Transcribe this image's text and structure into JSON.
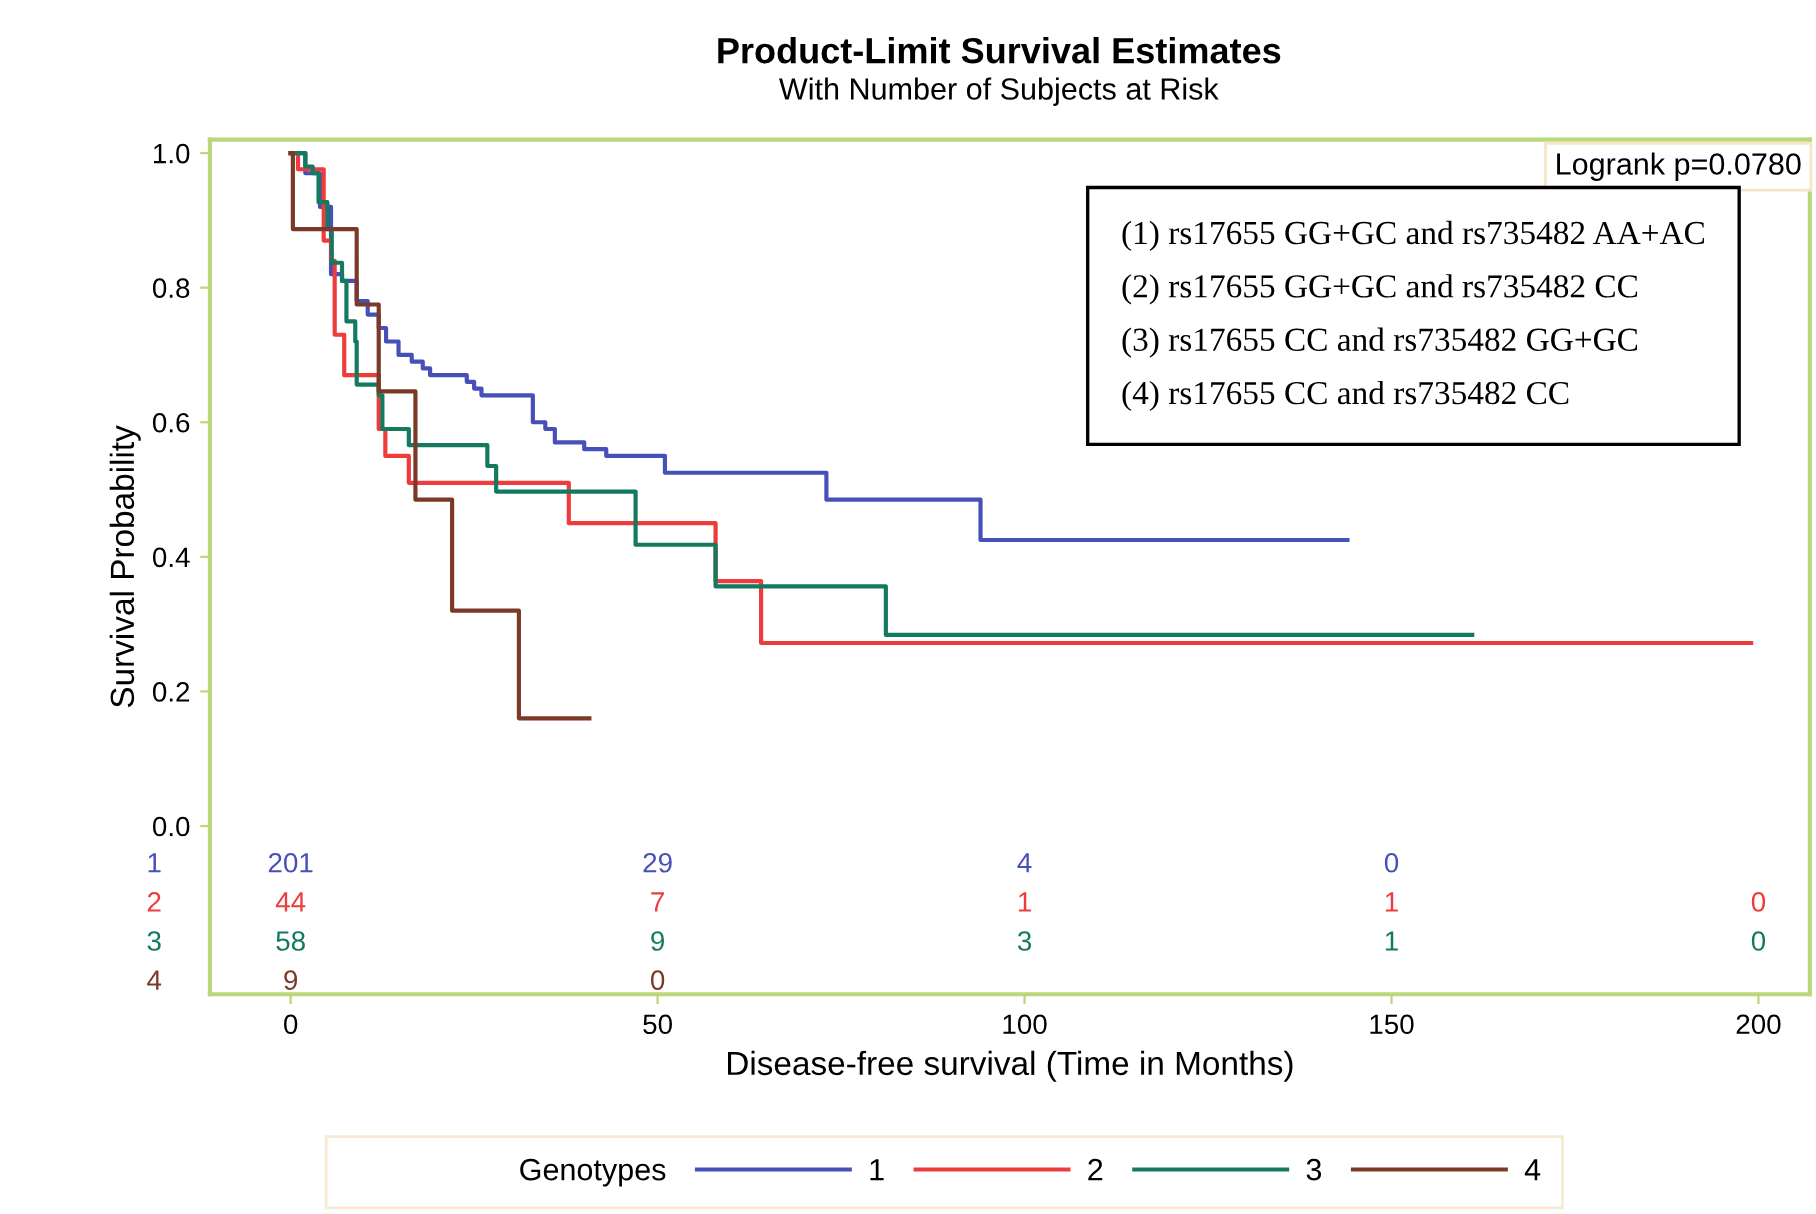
{
  "chart_data": {
    "type": "step",
    "title": "Product-Limit Survival Estimates",
    "subtitle": "With Number of Subjects at Risk",
    "xlabel": "Disease-free survival (Time in Months)",
    "ylabel": "Survival Probability",
    "legend_title": "Genotypes",
    "xlim": [
      -11,
      207
    ],
    "ylim": [
      -0.25,
      1.02
    ],
    "xticks": [
      0,
      50,
      100,
      150,
      200
    ],
    "yticks": [
      {
        "value": 0,
        "label": "0.0"
      },
      {
        "value": 0.2,
        "label": "0.2"
      },
      {
        "value": 0.4,
        "label": "0.4"
      },
      {
        "value": 0.6,
        "label": "0.6"
      },
      {
        "value": 0.8,
        "label": "0.8"
      },
      {
        "value": 1,
        "label": "1.0"
      }
    ],
    "grid": false,
    "legend": "bottom",
    "line_style": "solid",
    "marker": "none",
    "series": [
      {
        "name": "1",
        "color": "#4650b8",
        "x": [
          0,
          2,
          4,
          5.5,
          7,
          9,
          10.5,
          12,
          13,
          14.7,
          16.5,
          18,
          19,
          24,
          25,
          26,
          33,
          34.7,
          36,
          40,
          43,
          51,
          73,
          94,
          144
        ],
        "values": [
          1.0,
          0.97,
          0.92,
          0.82,
          0.81,
          0.78,
          0.76,
          0.74,
          0.72,
          0.7,
          0.69,
          0.68,
          0.67,
          0.66,
          0.65,
          0.64,
          0.6,
          0.59,
          0.57,
          0.56,
          0.55,
          0.525,
          0.485,
          0.425,
          0.425
        ]
      },
      {
        "name": "2",
        "color": "#ee3b3b",
        "x": [
          0,
          1,
          4.5,
          5.5,
          6,
          7.3,
          12,
          12.9,
          16.1,
          37.9,
          57.9,
          64.1,
          199
        ],
        "values": [
          1.0,
          0.976,
          0.87,
          0.84,
          0.73,
          0.67,
          0.59,
          0.55,
          0.51,
          0.45,
          0.364,
          0.272,
          0.272
        ]
      },
      {
        "name": "3",
        "color": "#137a5f",
        "x": [
          0,
          2,
          3,
          3.8,
          5,
          5.6,
          7,
          7.6,
          8.8,
          9,
          12,
          12.5,
          16.1,
          26.8,
          28,
          47,
          57.9,
          81.1,
          161
        ],
        "values": [
          1.0,
          0.98,
          0.97,
          0.927,
          0.887,
          0.837,
          0.81,
          0.75,
          0.72,
          0.656,
          0.64,
          0.59,
          0.566,
          0.535,
          0.497,
          0.418,
          0.356,
          0.284,
          0.284
        ]
      },
      {
        "name": "4",
        "color": "#7b3a28",
        "x": [
          0,
          0.3,
          9,
          12,
          17,
          22,
          31.1,
          40.7
        ],
        "values": [
          1.0,
          0.887,
          0.775,
          0.646,
          0.485,
          0.32,
          0.16,
          0.16
        ]
      }
    ],
    "annotations": [
      "Logrank p=0.0780",
      "(1) rs17655 GG+GC and rs735482 AA+AC",
      "(2) rs17655 GG+GC and rs735482 CC",
      "(3) rs17655 CC and rs735482 GG+GC",
      "(4) rs17655 CC and rs735482 CC",
      "201",
      "29",
      "4",
      "0",
      "44",
      "7",
      "1",
      "1",
      "0",
      "58",
      "9",
      "3",
      "1",
      "0",
      "9",
      "0"
    ]
  }
}
